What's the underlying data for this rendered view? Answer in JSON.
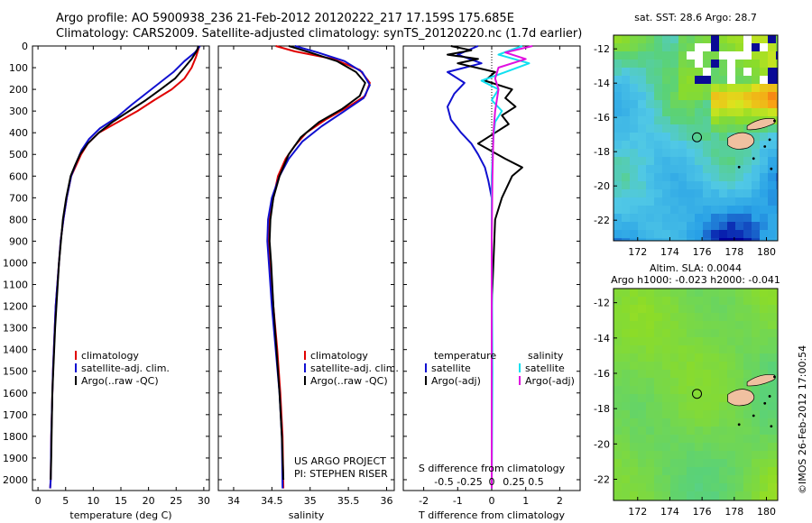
{
  "header": {
    "line1": "Argo profile: AO 5900938_236 21-Feb-2012 20120222_217 17.159S 175.685E",
    "line2": "Climatology: CARS2009. Satellite-adjusted climatology: synTS_20120220.nc (1.7d earlier)"
  },
  "colors": {
    "climatology": "#e00000",
    "satellite": "#1010d0",
    "argo": "#000000",
    "satellite_salinity": "#10e0f0",
    "argo_salinity_adj": "#e010e0"
  },
  "chart_data": [
    {
      "type": "line",
      "id": "temperature",
      "xlabel": "temperature (deg C)",
      "ylabel": "",
      "xlim": [
        -1,
        31
      ],
      "ylim": [
        2050,
        0
      ],
      "xticks": [
        0,
        5,
        10,
        15,
        20,
        25,
        30
      ],
      "yticks": [
        0,
        100,
        200,
        300,
        400,
        500,
        600,
        700,
        800,
        900,
        1000,
        1100,
        1200,
        1300,
        1400,
        1500,
        1600,
        1700,
        1800,
        1900,
        2000
      ],
      "legend": [
        "climatology",
        "satellite-adj. clim.",
        "Argo(..raw -QC)"
      ],
      "series": [
        {
          "name": "climatology",
          "color": "#e00000",
          "x": [
            29.2,
            28.6,
            27.8,
            26.5,
            24.2,
            21,
            18,
            14.5,
            11,
            9,
            7.8,
            6.9,
            6,
            5.2,
            4.6,
            4.1,
            3.2,
            2.7,
            2.4,
            2.3,
            2.2
          ],
          "y": [
            0,
            50,
            100,
            150,
            200,
            250,
            300,
            350,
            400,
            450,
            500,
            550,
            600,
            700,
            800,
            900,
            1200,
            1500,
            1800,
            2000,
            2040
          ]
        },
        {
          "name": "satellite-adj. clim.",
          "color": "#1010d0",
          "x": [
            29.3,
            28.4,
            26.5,
            24.5,
            22,
            19.5,
            17,
            14.2,
            11.2,
            9.2,
            7.9,
            6.9,
            6,
            5.2,
            4.6,
            4.1,
            3.2,
            2.7,
            2.4,
            2.3,
            2.2
          ],
          "y": [
            0,
            30,
            70,
            120,
            170,
            220,
            270,
            330,
            380,
            430,
            480,
            540,
            600,
            700,
            800,
            900,
            1200,
            1500,
            1800,
            2000,
            2040
          ]
        },
        {
          "name": "Argo(..raw -QC)",
          "color": "#000000",
          "x": [
            29,
            28.8,
            27.8,
            26.5,
            24.8,
            22.2,
            19.5,
            16.5,
            13.5,
            11,
            9,
            7.6,
            6.7,
            5.9,
            5.1,
            4.5,
            3.8,
            3.1,
            2.6,
            2.4,
            2.3
          ],
          "y": [
            0,
            20,
            60,
            100,
            150,
            200,
            250,
            300,
            350,
            400,
            450,
            500,
            550,
            600,
            700,
            800,
            1000,
            1300,
            1600,
            1900,
            2000
          ]
        }
      ]
    },
    {
      "type": "line",
      "id": "salinity",
      "xlabel": "salinity",
      "ylabel": "",
      "xlim": [
        33.8,
        36.1
      ],
      "ylim": [
        2050,
        0
      ],
      "xticks": [
        34,
        34.5,
        35,
        35.5,
        36
      ],
      "legend": [
        "climatology",
        "satellite-adj. clim.",
        "Argo(..raw -QC)"
      ],
      "annotation": [
        "US ARGO PROJECT",
        "PI: STEPHEN RISER"
      ],
      "series": [
        {
          "name": "climatology",
          "color": "#e00000",
          "x": [
            34.55,
            34.8,
            35.3,
            35.65,
            35.78,
            35.72,
            35.5,
            35.2,
            34.95,
            34.8,
            34.68,
            34.58,
            34.52,
            34.47,
            34.46,
            34.48,
            34.52,
            34.57,
            34.61,
            34.64,
            34.65
          ],
          "y": [
            0,
            25,
            60,
            110,
            170,
            230,
            280,
            340,
            400,
            460,
            520,
            600,
            700,
            800,
            900,
            1000,
            1200,
            1400,
            1600,
            1800,
            2040
          ]
        },
        {
          "name": "satellite-adj. clim.",
          "color": "#1010d0",
          "x": [
            34.8,
            35.1,
            35.45,
            35.68,
            35.78,
            35.7,
            35.45,
            35.15,
            34.9,
            34.72,
            34.6,
            34.5,
            34.45,
            34.44,
            34.46,
            34.5,
            34.55,
            34.6,
            34.63,
            34.64
          ],
          "y": [
            0,
            30,
            70,
            120,
            180,
            240,
            300,
            370,
            440,
            520,
            600,
            700,
            800,
            900,
            1000,
            1200,
            1400,
            1600,
            1800,
            2040
          ]
        },
        {
          "name": "Argo(..raw -QC)",
          "color": "#000000",
          "x": [
            34.72,
            35.0,
            35.35,
            35.6,
            35.72,
            35.65,
            35.42,
            35.12,
            34.88,
            34.72,
            34.6,
            34.52,
            34.48,
            34.47,
            34.49,
            34.52,
            34.56,
            34.6,
            34.63,
            34.65
          ],
          "y": [
            0,
            30,
            70,
            120,
            170,
            230,
            290,
            350,
            420,
            500,
            600,
            700,
            800,
            900,
            1000,
            1200,
            1400,
            1600,
            1800,
            2000
          ]
        }
      ]
    },
    {
      "type": "line",
      "id": "difference",
      "xlabel": "T difference from climatology",
      "xlabel_top": "S difference from climatology",
      "xlim": [
        -2.6,
        2.6
      ],
      "ylim": [
        2050,
        0
      ],
      "xticks": [
        -2,
        -1,
        0,
        1,
        2
      ],
      "xticks_top": [
        "-0.5",
        "-0.25",
        "0",
        "0.25",
        "0.5"
      ],
      "legend": [
        "temperature",
        "satellite",
        "Argo(-adj)",
        "salinity",
        "satellite",
        "Argo(-adj)"
      ],
      "series": [
        {
          "name": "temperature satellite",
          "color": "#1010d0",
          "x": [
            -0.4,
            -1.0,
            -0.3,
            -1.3,
            -0.8,
            -1.1,
            -1.3,
            -1.2,
            -0.9,
            -0.6,
            -0.4,
            -0.2,
            -0.1,
            0,
            0,
            0,
            0,
            0
          ],
          "y": [
            0,
            40,
            80,
            120,
            170,
            220,
            280,
            340,
            400,
            450,
            500,
            560,
            620,
            700,
            900,
            1200,
            1600,
            2040
          ]
        },
        {
          "name": "temperature Argo(-adj)",
          "color": "#000000",
          "x": [
            -1.2,
            -0.6,
            -1.3,
            -0.4,
            -1.0,
            0.1,
            -0.2,
            0.6,
            0.4,
            0.7,
            0.3,
            0.5,
            0.1,
            -0.4,
            0.4,
            0.9,
            0.6,
            0.3,
            0.1,
            0,
            0
          ],
          "y": [
            0,
            20,
            40,
            60,
            80,
            120,
            160,
            200,
            240,
            280,
            320,
            360,
            400,
            450,
            520,
            560,
            600,
            700,
            800,
            1200,
            2000
          ]
        },
        {
          "name": "salinity satellite",
          "color": "#10e0f0",
          "x": [
            0.9,
            0.2,
            1.1,
            0.4,
            -0.3,
            0.2,
            0.0,
            0.3,
            0.1,
            0.05,
            0.0,
            0.0,
            0.02,
            0.0
          ],
          "y": [
            0,
            40,
            80,
            120,
            160,
            200,
            250,
            300,
            350,
            420,
            600,
            900,
            1500,
            2040
          ]
        },
        {
          "name": "salinity Argo(-adj)",
          "color": "#e010e0",
          "x": [
            1.2,
            0.4,
            1.0,
            0.2,
            0.1,
            0.2,
            0.1,
            0.05,
            0.02,
            0.0,
            0.0,
            0.0
          ],
          "y": [
            0,
            30,
            60,
            100,
            150,
            200,
            300,
            400,
            600,
            900,
            1500,
            2040
          ]
        }
      ]
    }
  ],
  "maps": {
    "sst": {
      "title": "sat. SST: 28.6 Argo: 28.7",
      "yticks": [
        "-12",
        "-14",
        "-16",
        "-18",
        "-20",
        "-22"
      ],
      "xticks": [
        "172",
        "174",
        "176",
        "178",
        "180"
      ]
    },
    "sla": {
      "title1": "Altim. SLA: 0.0044",
      "title2": "Argo h1000: -0.023 h2000: -0.041",
      "yticks": [
        "-12",
        "-14",
        "-16",
        "-18",
        "-20",
        "-22"
      ],
      "xticks": [
        "172",
        "174",
        "176",
        "178",
        "180"
      ]
    }
  },
  "footer": {
    "stamp": "©IMOS 26-Feb-2012 17:00:54"
  }
}
